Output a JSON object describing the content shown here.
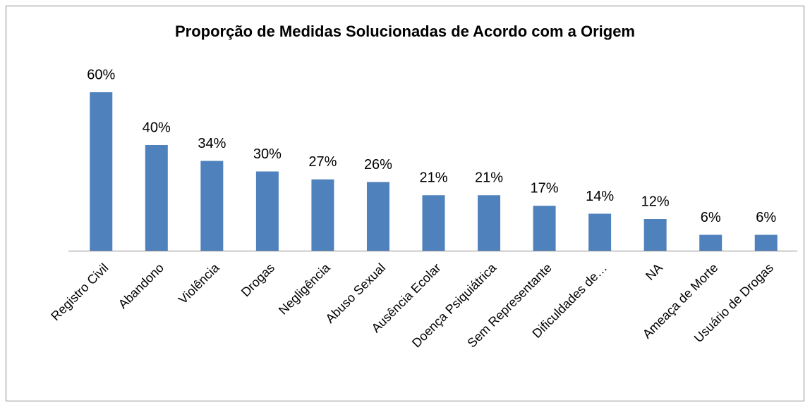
{
  "chart_data": {
    "type": "bar",
    "title": "Proporção de Medidas Solucionadas de Acordo com a Origem",
    "categories": [
      "Registro Civil",
      "Abandono",
      "Violência",
      "Drogas",
      "Negligência",
      "Abuso Sexual",
      "Ausência Ecolar",
      "Doença Psiquiátrica",
      "Sem Representante",
      "Dificuldades de…",
      "NA",
      "Ameaça de Morte",
      "Usuário de Drogas"
    ],
    "values": [
      60,
      40,
      34,
      30,
      27,
      26,
      21,
      21,
      17,
      14,
      12,
      6,
      6
    ],
    "value_labels": [
      "60%",
      "40%",
      "34%",
      "30%",
      "27%",
      "26%",
      "21%",
      "21%",
      "17%",
      "14%",
      "12%",
      "6%",
      "6%"
    ],
    "color": "#4f81bd"
  }
}
